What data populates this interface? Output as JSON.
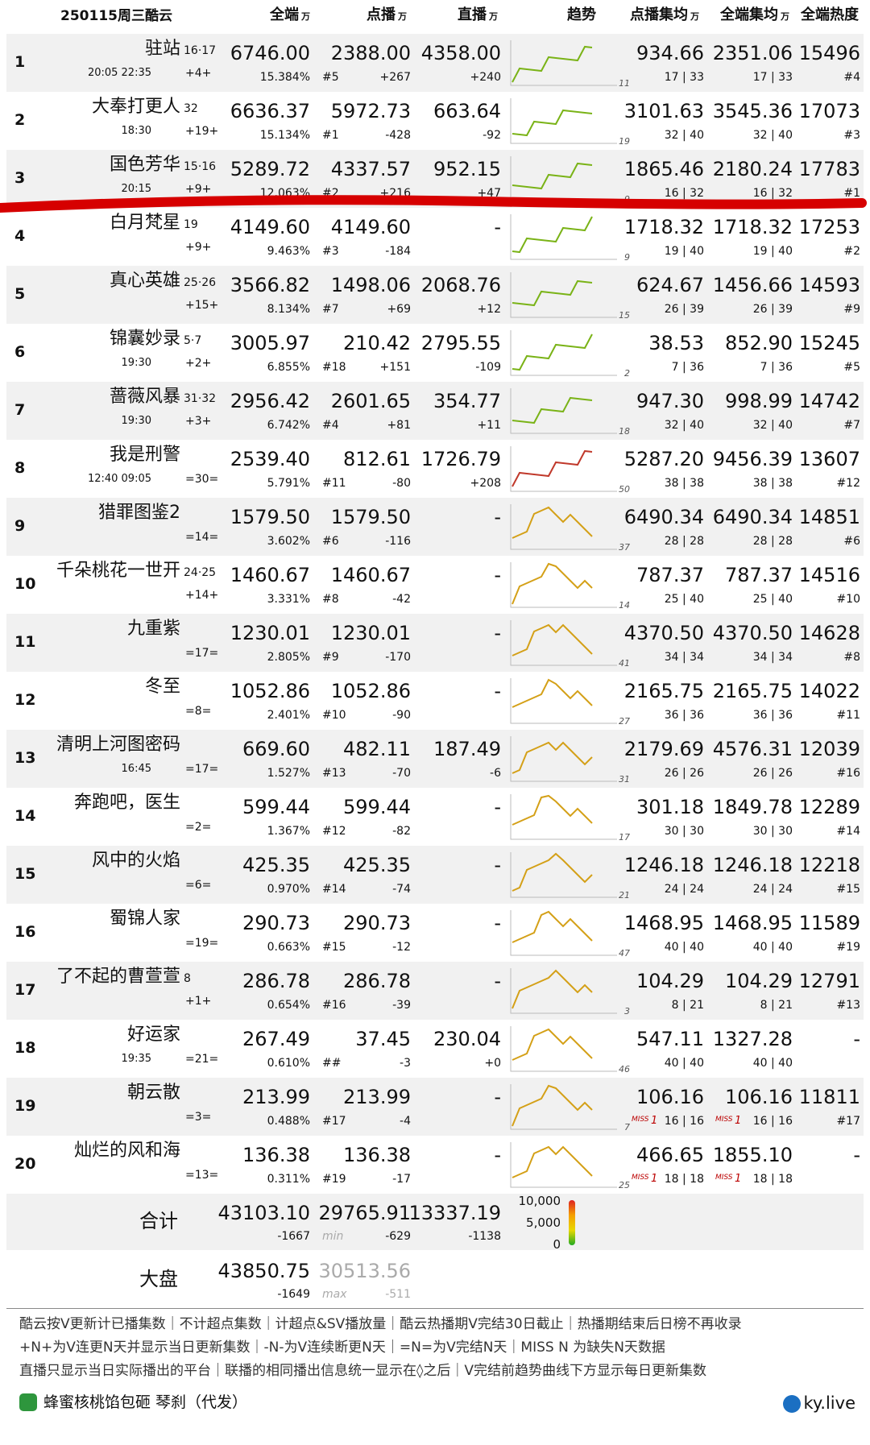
{
  "header": {
    "date": "250115周三酷云",
    "cols": [
      {
        "label": "全端",
        "unit": "万"
      },
      {
        "label": "点播",
        "unit": "万"
      },
      {
        "label": "直播",
        "unit": "万"
      },
      {
        "label": "趋势"
      },
      {
        "label": "点播集均",
        "unit": "万"
      },
      {
        "label": "全端集均",
        "unit": "万"
      },
      {
        "label": "全端热度"
      }
    ]
  },
  "miss_label": "MISS",
  "rows": [
    {
      "rank": "1",
      "name": "驻站",
      "ep": "16·17",
      "sched": "20:05 22:35",
      "change": "+4+",
      "total": "6746.00",
      "pct": "15.384%",
      "vod": "2388.00",
      "vod_rank": "#5",
      "vod_change": "+267",
      "live": "4358.00",
      "live_change": "+240",
      "trend_max": "11",
      "vod_avg": "934.66",
      "vod_ep": "17 | 33",
      "total_avg": "2351.06",
      "total_ep": "17 | 33",
      "heat": "15496",
      "heat_rank": "#4"
    },
    {
      "rank": "2",
      "name": "大奉打更人",
      "ep": "32",
      "sched": "18:30",
      "change": "+19+",
      "total": "6636.37",
      "pct": "15.134%",
      "vod": "5972.73",
      "vod_rank": "#1",
      "vod_change": "-428",
      "live": "663.64",
      "live_change": "-92",
      "trend_max": "19",
      "vod_avg": "3101.63",
      "vod_ep": "32 | 40",
      "total_avg": "3545.36",
      "total_ep": "32 | 40",
      "heat": "17073",
      "heat_rank": "#3"
    },
    {
      "rank": "3",
      "name": "国色芳华",
      "ep": "15·16",
      "sched": "20:15",
      "change": "+9+",
      "total": "5289.72",
      "pct": "12.063%",
      "vod": "4337.57",
      "vod_rank": "#2",
      "vod_change": "+216",
      "live": "952.15",
      "live_change": "+47",
      "trend_max": "9",
      "vod_avg": "1865.46",
      "vod_ep": "16 | 32",
      "total_avg": "2180.24",
      "total_ep": "16 | 32",
      "heat": "17783",
      "heat_rank": "#1"
    },
    {
      "rank": "4",
      "name": "白月梵星",
      "ep": "19",
      "change": "+9+",
      "total": "4149.60",
      "pct": "9.463%",
      "vod": "4149.60",
      "vod_rank": "#3",
      "vod_change": "-184",
      "live": "-",
      "trend_max": "9",
      "vod_avg": "1718.32",
      "vod_ep": "19 | 40",
      "total_avg": "1718.32",
      "total_ep": "19 | 40",
      "heat": "17253",
      "heat_rank": "#2"
    },
    {
      "rank": "5",
      "name": "真心英雄",
      "ep": "25·26",
      "change": "+15+",
      "total": "3566.82",
      "pct": "8.134%",
      "vod": "1498.06",
      "vod_rank": "#7",
      "vod_change": "+69",
      "live": "2068.76",
      "live_change": "+12",
      "trend_max": "15",
      "vod_avg": "624.67",
      "vod_ep": "26 | 39",
      "total_avg": "1456.66",
      "total_ep": "26 | 39",
      "heat": "14593",
      "heat_rank": "#9"
    },
    {
      "rank": "6",
      "name": "锦囊妙录",
      "ep": "5·7",
      "sched": "19:30",
      "change": "+2+",
      "total": "3005.97",
      "pct": "6.855%",
      "vod": "210.42",
      "vod_rank": "#18",
      "vod_change": "+151",
      "live": "2795.55",
      "live_change": "-109",
      "trend_max": "2",
      "vod_avg": "38.53",
      "vod_ep": "7 | 36",
      "total_avg": "852.90",
      "total_ep": "7 | 36",
      "heat": "15245",
      "heat_rank": "#5"
    },
    {
      "rank": "7",
      "name": "蔷薇风暴",
      "ep": "31·32",
      "sched": "19:30",
      "change": "+3+",
      "total": "2956.42",
      "pct": "6.742%",
      "vod": "2601.65",
      "vod_rank": "#4",
      "vod_change": "+81",
      "live": "354.77",
      "live_change": "+11",
      "trend_max": "18",
      "vod_avg": "947.30",
      "vod_ep": "32 | 40",
      "total_avg": "998.99",
      "total_ep": "32 | 40",
      "heat": "14742",
      "heat_rank": "#7"
    },
    {
      "rank": "8",
      "name": "我是刑警",
      "sched": "12:40 09:05",
      "change": "=30=",
      "total": "2539.40",
      "pct": "5.791%",
      "vod": "812.61",
      "vod_rank": "#11",
      "vod_change": "-80",
      "live": "1726.79",
      "live_change": "+208",
      "trend_max": "50",
      "vod_avg": "5287.20",
      "vod_ep": "38 | 38",
      "total_avg": "9456.39",
      "total_ep": "38 | 38",
      "heat": "13607",
      "heat_rank": "#12"
    },
    {
      "rank": "9",
      "name": "猎罪图鉴2",
      "change": "=14=",
      "total": "1579.50",
      "pct": "3.602%",
      "vod": "1579.50",
      "vod_rank": "#6",
      "vod_change": "-116",
      "live": "-",
      "trend_max": "37",
      "vod_avg": "6490.34",
      "vod_ep": "28 | 28",
      "total_avg": "6490.34",
      "total_ep": "28 | 28",
      "heat": "14851",
      "heat_rank": "#6"
    },
    {
      "rank": "10",
      "name": "千朵桃花一世开",
      "ep": "24·25",
      "change": "+14+",
      "total": "1460.67",
      "pct": "3.331%",
      "vod": "1460.67",
      "vod_rank": "#8",
      "vod_change": "-42",
      "live": "-",
      "trend_max": "14",
      "vod_avg": "787.37",
      "vod_ep": "25 | 40",
      "total_avg": "787.37",
      "total_ep": "25 | 40",
      "heat": "14516",
      "heat_rank": "#10"
    },
    {
      "rank": "11",
      "name": "九重紫",
      "change": "=17=",
      "total": "1230.01",
      "pct": "2.805%",
      "vod": "1230.01",
      "vod_rank": "#9",
      "vod_change": "-170",
      "live": "-",
      "trend_max": "41",
      "vod_avg": "4370.50",
      "vod_ep": "34 | 34",
      "total_avg": "4370.50",
      "total_ep": "34 | 34",
      "heat": "14628",
      "heat_rank": "#8"
    },
    {
      "rank": "12",
      "name": "冬至",
      "change": "=8=",
      "total": "1052.86",
      "pct": "2.401%",
      "vod": "1052.86",
      "vod_rank": "#10",
      "vod_change": "-90",
      "live": "-",
      "trend_max": "27",
      "vod_avg": "2165.75",
      "vod_ep": "36 | 36",
      "total_avg": "2165.75",
      "total_ep": "36 | 36",
      "heat": "14022",
      "heat_rank": "#11"
    },
    {
      "rank": "13",
      "name": "清明上河图密码",
      "sched": "16:45",
      "change": "=17=",
      "total": "669.60",
      "pct": "1.527%",
      "vod": "482.11",
      "vod_rank": "#13",
      "vod_change": "-70",
      "live": "187.49",
      "live_change": "-6",
      "trend_max": "31",
      "vod_avg": "2179.69",
      "vod_ep": "26 | 26",
      "total_avg": "4576.31",
      "total_ep": "26 | 26",
      "heat": "12039",
      "heat_rank": "#16"
    },
    {
      "rank": "14",
      "name": "奔跑吧，医生",
      "change": "=2=",
      "total": "599.44",
      "pct": "1.367%",
      "vod": "599.44",
      "vod_rank": "#12",
      "vod_change": "-82",
      "live": "-",
      "trend_max": "17",
      "vod_avg": "301.18",
      "vod_ep": "30 | 30",
      "total_avg": "1849.78",
      "total_ep": "30 | 30",
      "heat": "12289",
      "heat_rank": "#14"
    },
    {
      "rank": "15",
      "name": "风中的火焰",
      "change": "=6=",
      "total": "425.35",
      "pct": "0.970%",
      "vod": "425.35",
      "vod_rank": "#14",
      "vod_change": "-74",
      "live": "-",
      "trend_max": "21",
      "vod_avg": "1246.18",
      "vod_ep": "24 | 24",
      "total_avg": "1246.18",
      "total_ep": "24 | 24",
      "heat": "12218",
      "heat_rank": "#15"
    },
    {
      "rank": "16",
      "name": "蜀锦人家",
      "change": "=19=",
      "total": "290.73",
      "pct": "0.663%",
      "vod": "290.73",
      "vod_rank": "#15",
      "vod_change": "-12",
      "live": "-",
      "trend_max": "47",
      "vod_avg": "1468.95",
      "vod_ep": "40 | 40",
      "total_avg": "1468.95",
      "total_ep": "40 | 40",
      "heat": "11589",
      "heat_rank": "#19"
    },
    {
      "rank": "17",
      "name": "了不起的曹萱萱",
      "ep": "8",
      "change": "+1+",
      "total": "286.78",
      "pct": "0.654%",
      "vod": "286.78",
      "vod_rank": "#16",
      "vod_change": "-39",
      "live": "-",
      "trend_max": "3",
      "vod_avg": "104.29",
      "vod_ep": "8 | 21",
      "total_avg": "104.29",
      "total_ep": "8 | 21",
      "heat": "12791",
      "heat_rank": "#13"
    },
    {
      "rank": "18",
      "name": "好运家",
      "sched": "19:35",
      "change": "=21=",
      "total": "267.49",
      "pct": "0.610%",
      "vod": "37.45",
      "vod_rank": "##",
      "vod_change": "-3",
      "live": "230.04",
      "live_change": "+0",
      "trend_max": "46",
      "vod_avg": "547.11",
      "vod_ep": "40 | 40",
      "total_avg": "1327.28",
      "total_ep": "40 | 40",
      "heat": "-"
    },
    {
      "rank": "19",
      "name": "朝云散",
      "change": "=3=",
      "total": "213.99",
      "pct": "0.488%",
      "vod": "213.99",
      "vod_rank": "#17",
      "vod_change": "-4",
      "live": "-",
      "trend_max": "7",
      "miss": "1",
      "vod_avg": "106.16",
      "vod_ep": "16 | 16",
      "total_avg": "106.16",
      "total_ep": "16 | 16",
      "heat": "11811",
      "heat_rank": "#17"
    },
    {
      "rank": "20",
      "name": "灿烂的风和海",
      "change": "=13=",
      "total": "136.38",
      "pct": "0.311%",
      "vod": "136.38",
      "vod_rank": "#19",
      "vod_change": "-17",
      "live": "-",
      "trend_max": "25",
      "miss": "1",
      "vod_avg": "466.65",
      "vod_ep": "18 | 18",
      "total_avg": "1855.10",
      "total_ep": "18 | 18",
      "heat": "-"
    }
  ],
  "totals": {
    "label": "合计",
    "total": "43103.10",
    "total_change": "-1667",
    "vod": "29765.91",
    "vod_note": "min",
    "vod_change": "-629",
    "live": "13337.19",
    "live_change": "-1138",
    "scale": [
      "10,000",
      "5,000",
      "0"
    ]
  },
  "market": {
    "label": "大盘",
    "total": "43850.75",
    "total_change": "-1649",
    "vod": "30513.56",
    "vod_note": "max",
    "vod_change": "-511"
  },
  "footer": {
    "lines": [
      "酷云按V更新计已播集数｜不计超点集数｜计超点&SV播放量｜酷云热播期V完结30日截止｜热播期结束后日榜不再收录",
      "+N+为V连更N天并显示当日更新集数｜-N-为V连续断更N天｜=N=为V完结N天｜MISS N 为缺失N天数据",
      "直播只显示当日实际播出的平台｜联播的相同播出信息统一显示在◊之后｜V完结前趋势曲线下方显示每日更新集数"
    ],
    "author": "蜂蜜核桃馅包砸 琴刹（代发）",
    "site": "ky.live"
  }
}
